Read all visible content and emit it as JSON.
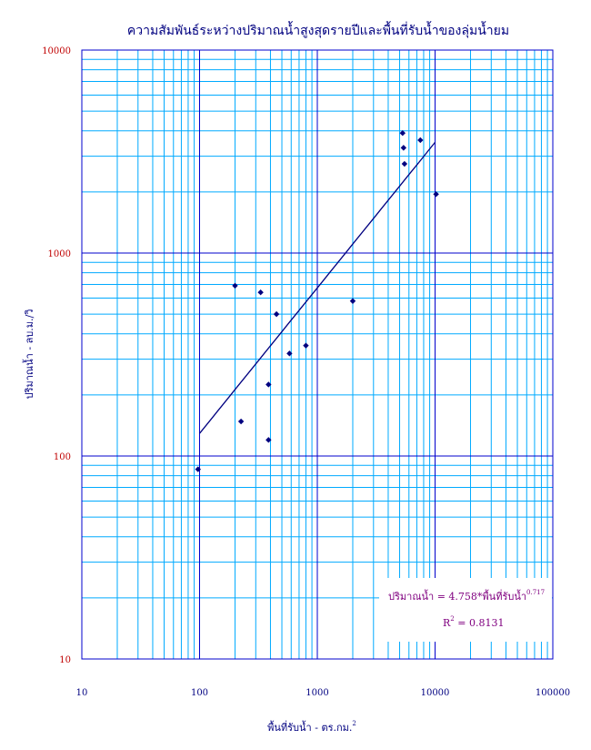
{
  "chart_data": {
    "type": "scatter",
    "title": "ความสัมพันธ์ระหว่างปริมาณน้ำสูงสุดรายปีและพื้นที่รับน้ำของลุ่มน้ำยม",
    "xlabel": "พื้นที่รับน้ำ - ตร.กม.",
    "xlabel_sup": "2",
    "ylabel": "ปริมาณน้ำ - ลบ.ม./วิ",
    "xscale": "log",
    "yscale": "log",
    "xlim": [
      10,
      100000
    ],
    "ylim": [
      10,
      10000
    ],
    "grid": true,
    "x_ticks": [
      {
        "value": 10,
        "label": "10"
      },
      {
        "value": 100,
        "label": "100"
      },
      {
        "value": 1000,
        "label": "1000"
      },
      {
        "value": 10000,
        "label": "10000"
      },
      {
        "value": 100000,
        "label": "100000"
      }
    ],
    "y_ticks": [
      {
        "value": 10,
        "label": "10"
      },
      {
        "value": 100,
        "label": "100"
      },
      {
        "value": 1000,
        "label": "1000"
      },
      {
        "value": 10000,
        "label": "10000"
      }
    ],
    "points": [
      {
        "x": 97,
        "y": 86
      },
      {
        "x": 200,
        "y": 690
      },
      {
        "x": 225,
        "y": 148
      },
      {
        "x": 330,
        "y": 640
      },
      {
        "x": 385,
        "y": 225
      },
      {
        "x": 385,
        "y": 120
      },
      {
        "x": 450,
        "y": 500
      },
      {
        "x": 580,
        "y": 320
      },
      {
        "x": 800,
        "y": 350
      },
      {
        "x": 2000,
        "y": 580
      },
      {
        "x": 5300,
        "y": 3900
      },
      {
        "x": 5400,
        "y": 3300
      },
      {
        "x": 5500,
        "y": 2750
      },
      {
        "x": 7500,
        "y": 3600
      },
      {
        "x": 10200,
        "y": 1950
      }
    ],
    "trendline": {
      "type": "power",
      "coefficient": 4.758,
      "exponent": 0.717,
      "x_range": [
        100,
        10000
      ]
    },
    "annotation": {
      "equation_prefix": "ปริมาณน้ำ = 4.758*พื้นที่รับน้ำ",
      "equation_exponent": "0.717",
      "r2_prefix": "R",
      "r2_exponent": "2",
      "r2_suffix": " = 0.8131"
    },
    "colors": {
      "grid_major": "#0000cc",
      "grid_minor": "#00aaff",
      "points": "#000080",
      "trendline": "#000080",
      "y_tick_labels": "#c00000",
      "x_tick_labels": "#000080",
      "title": "#000080",
      "equation": "#800080"
    }
  }
}
